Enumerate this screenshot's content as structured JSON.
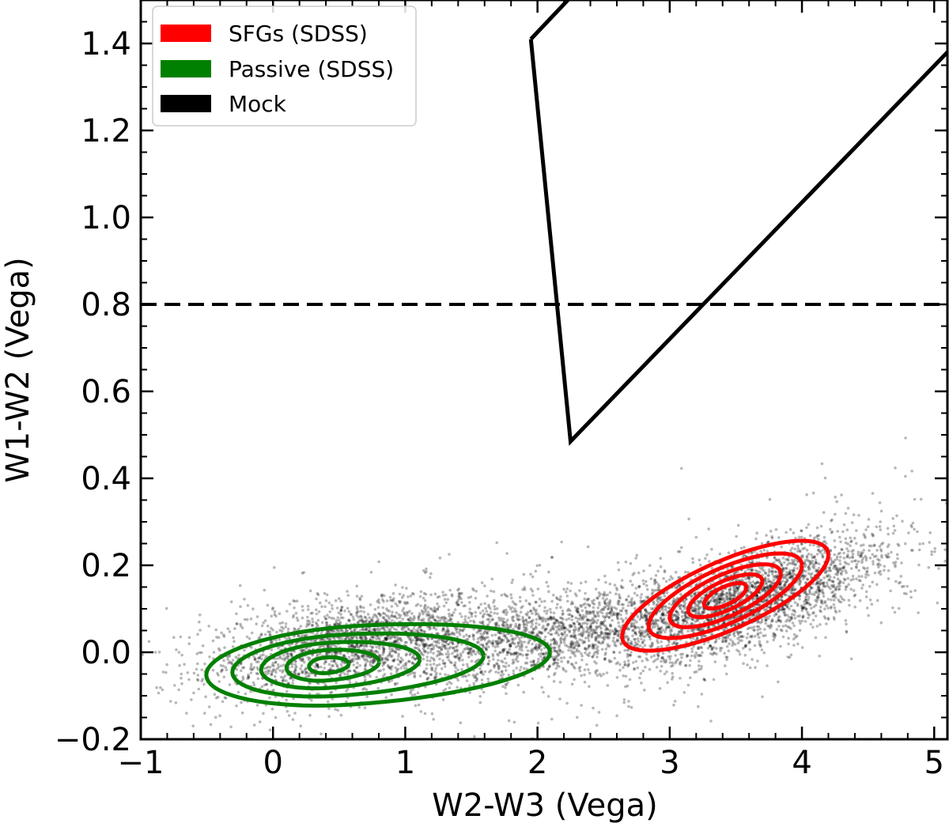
{
  "chart_data": {
    "type": "scatter",
    "xlabel": "W2-W3 (Vega)",
    "ylabel": "W1-W2 (Vega)",
    "xlim": [
      -1,
      5.1
    ],
    "ylim": [
      -0.2,
      1.5
    ],
    "xticks": [
      -1,
      0,
      1,
      2,
      3,
      4,
      5
    ],
    "yticks": [
      -0.2,
      0.0,
      0.2,
      0.4,
      0.6,
      0.8,
      1.0,
      1.2,
      1.4
    ],
    "xtick_labels": [
      "−1",
      "0",
      "1",
      "2",
      "3",
      "4",
      "5"
    ],
    "ytick_labels": [
      "−0.2",
      "0.0",
      "0.2",
      "0.4",
      "0.6",
      "0.8",
      "1.0",
      "1.2",
      "1.4"
    ],
    "legend": {
      "position": "top-left",
      "entries": [
        {
          "label": "SFGs (SDSS)",
          "color": "#ff0000"
        },
        {
          "label": "Passive (SDSS)",
          "color": "#008000"
        },
        {
          "label": "Mock",
          "color": "#000000"
        }
      ]
    },
    "reference_lines": [
      {
        "name": "dashed-threshold",
        "style": "dashed",
        "y": 0.8,
        "color": "#000000"
      }
    ],
    "wedge": {
      "style": "solid",
      "color": "#000000",
      "points": [
        [
          1.95,
          1.41
        ],
        [
          2.25,
          0.485
        ],
        [
          5.1,
          1.38
        ]
      ],
      "extra": [
        [
          1.95,
          1.41
        ],
        [
          2.23,
          1.5
        ]
      ]
    },
    "series": [
      {
        "name": "Mock",
        "kind": "scatter-cloud",
        "color": "#000000",
        "density_centers": [
          {
            "x": 0.6,
            "y": 0.02,
            "sx": 0.55,
            "sy": 0.05,
            "rho": 0.1,
            "weight": 0.33
          },
          {
            "x": 2.1,
            "y": 0.04,
            "sx": 0.6,
            "sy": 0.045,
            "rho": 0.2,
            "weight": 0.25
          },
          {
            "x": 3.6,
            "y": 0.12,
            "sx": 0.5,
            "sy": 0.06,
            "rho": 0.5,
            "weight": 0.42
          }
        ]
      },
      {
        "name": "Passive (SDSS)",
        "kind": "contours",
        "color": "#008000",
        "center": [
          0.4,
          -0.03
        ],
        "contours": [
          {
            "rx": 1.3,
            "ry": 0.09,
            "shift": 0.2
          },
          {
            "rx": 0.95,
            "ry": 0.07,
            "shift": 0.1
          },
          {
            "rx": 0.6,
            "ry": 0.052,
            "shift": 0.02
          },
          {
            "rx": 0.35,
            "ry": 0.035,
            "shift": 0.0
          },
          {
            "rx": 0.15,
            "ry": 0.018,
            "shift": 0.0
          }
        ]
      },
      {
        "name": "SFGs (SDSS)",
        "kind": "contours",
        "color": "#ff0000",
        "center": [
          3.42,
          0.13
        ],
        "tilt_slope": 0.12,
        "contours": [
          {
            "rx": 0.78,
            "ry": 0.085
          },
          {
            "rx": 0.58,
            "ry": 0.068
          },
          {
            "rx": 0.42,
            "ry": 0.052
          },
          {
            "rx": 0.28,
            "ry": 0.036
          },
          {
            "rx": 0.16,
            "ry": 0.022
          }
        ]
      }
    ]
  }
}
